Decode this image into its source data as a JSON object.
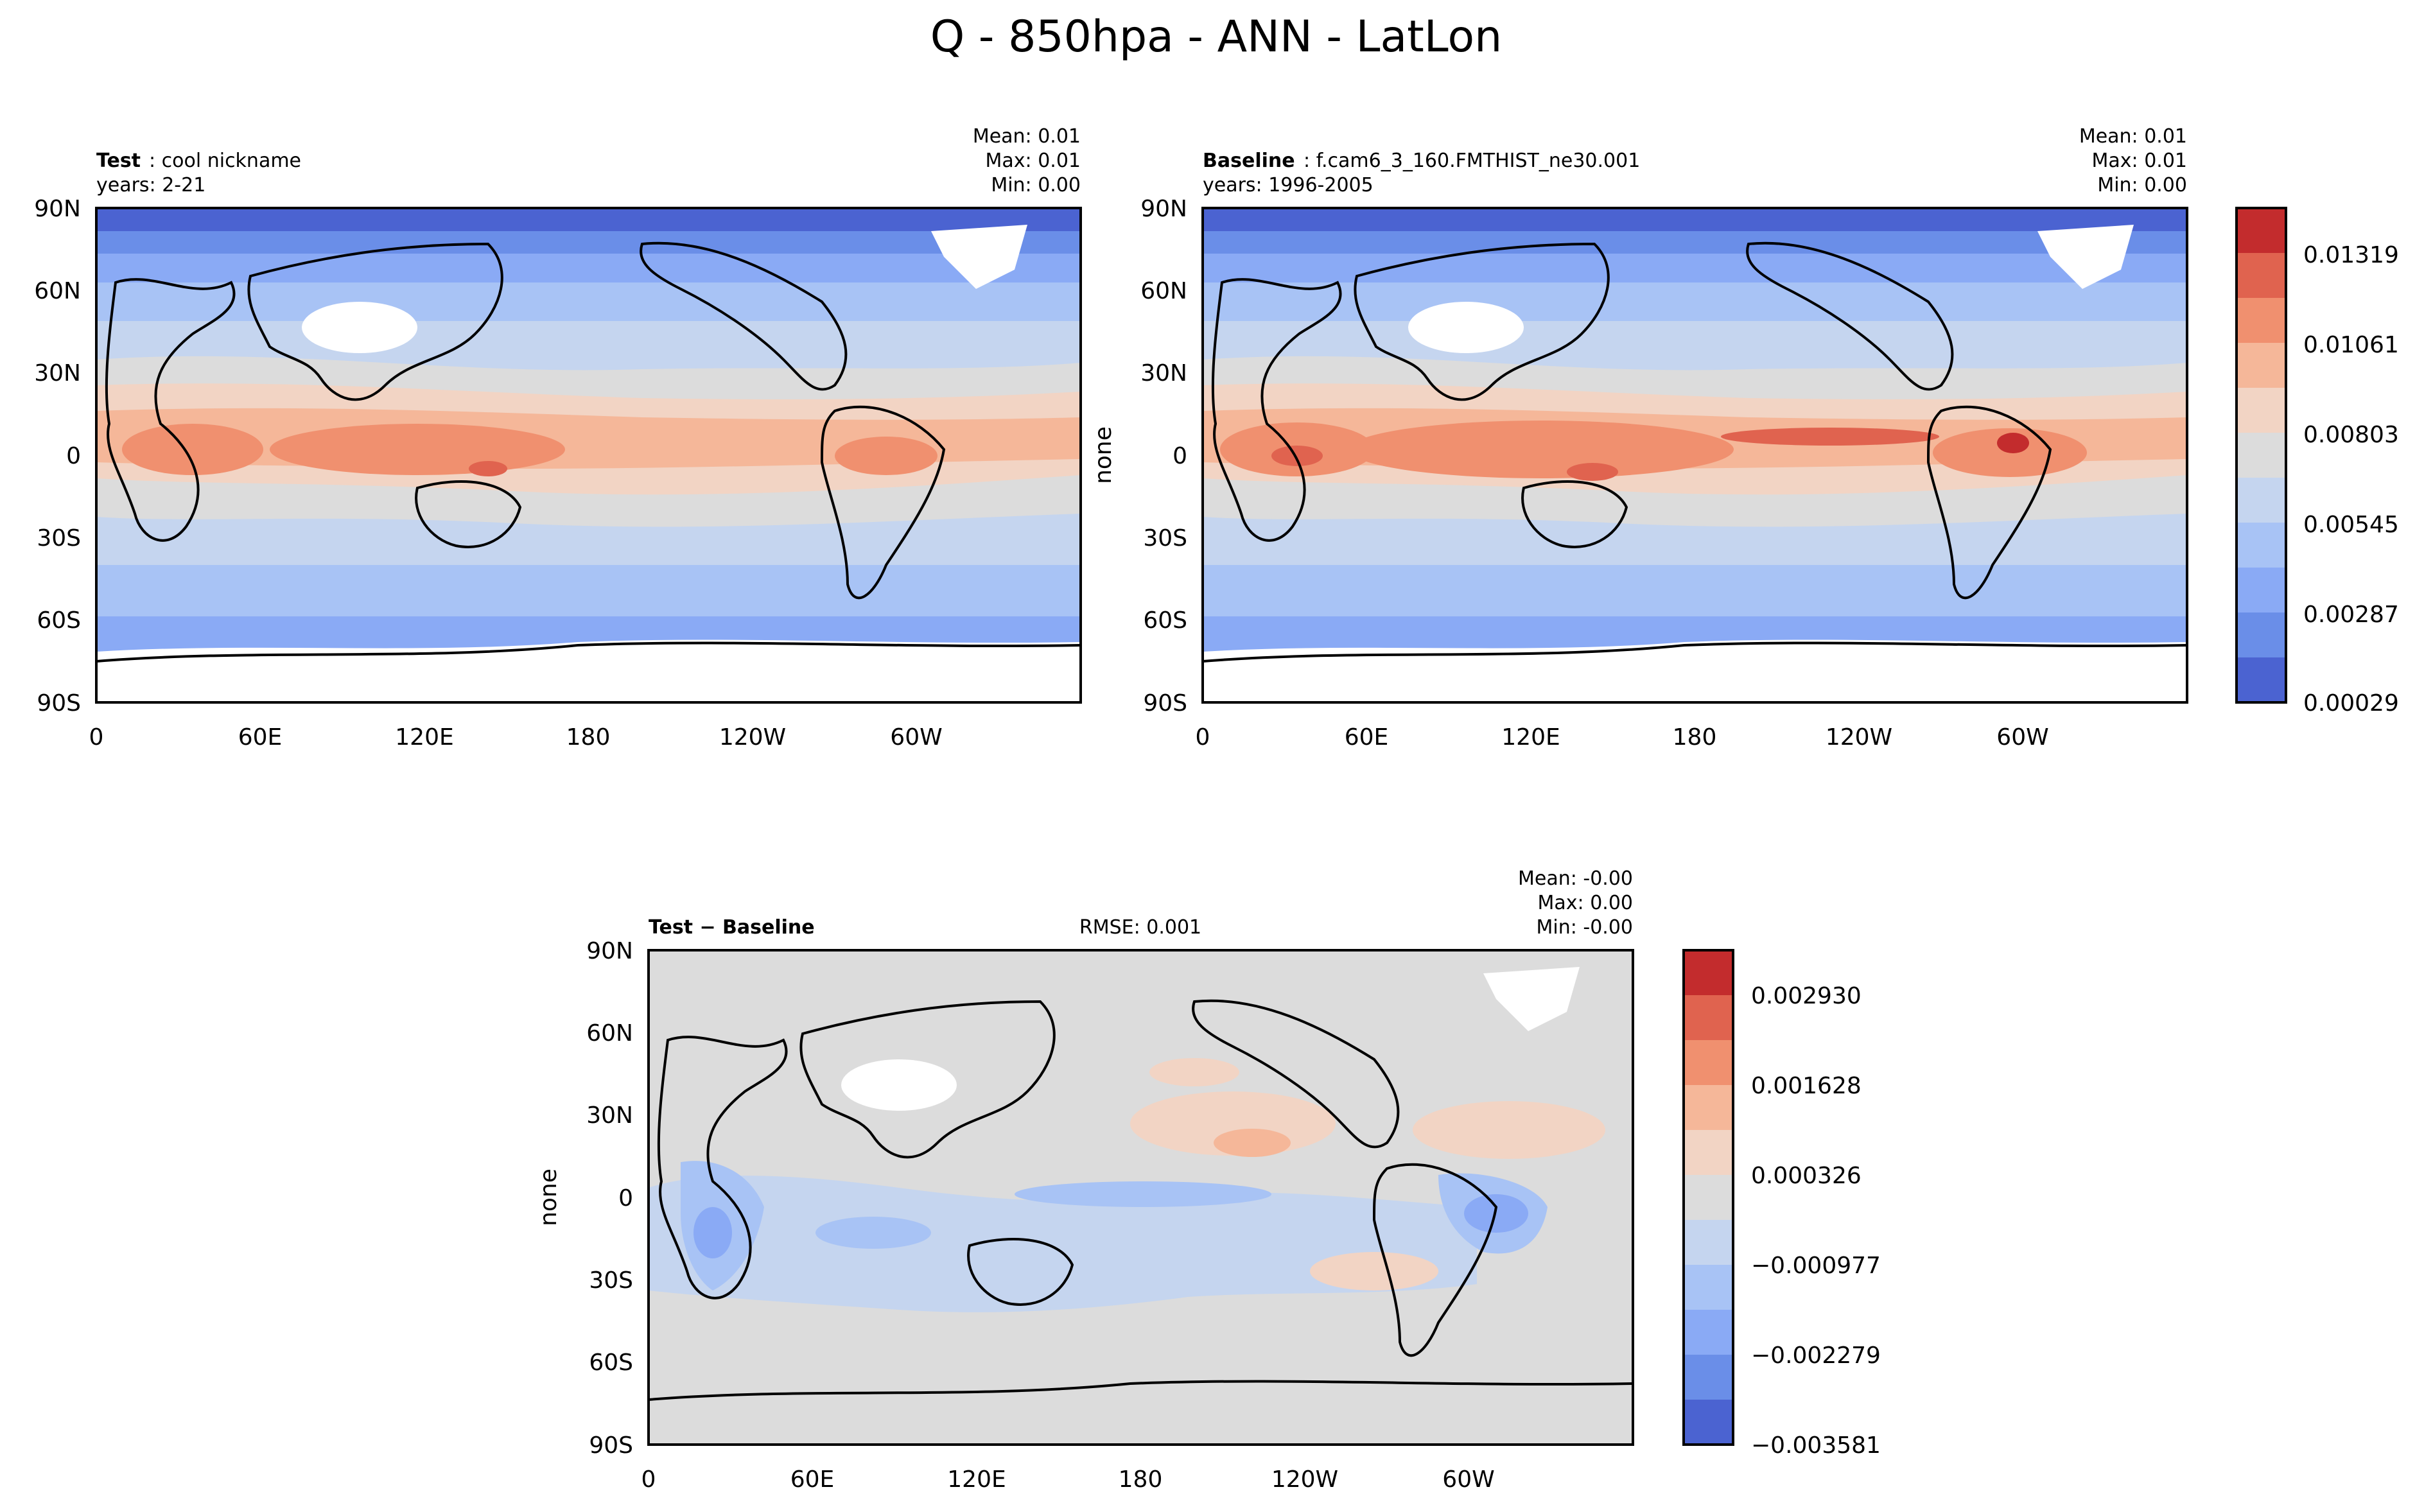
{
  "figure": {
    "title": "Q - 850hpa - ANN - LatLon"
  },
  "chart_data": [
    {
      "type": "heatmap",
      "panel": "test",
      "label_bold": "Test",
      "label_rest": ": cool nickname",
      "subtitle": "years: 2-21",
      "stats": {
        "mean": "Mean:  0.01",
        "max": "Max:  0.01",
        "min": "Min:  0.00"
      },
      "ylabel": "",
      "x_ticks": [
        "0",
        "60E",
        "120E",
        "180",
        "120W",
        "60W"
      ],
      "y_ticks": [
        "90N",
        "60N",
        "30N",
        "0",
        "30S",
        "60S",
        "90S"
      ]
    },
    {
      "type": "heatmap",
      "panel": "baseline",
      "label_bold": "Baseline",
      "label_rest": ": f.cam6_3_160.FMTHIST_ne30.001",
      "subtitle": "years: 1996-2005",
      "stats": {
        "mean": "Mean:  0.01",
        "max": "Max:  0.01",
        "min": "Min:  0.00"
      },
      "ylabel": "none",
      "x_ticks": [
        "0",
        "60E",
        "120E",
        "180",
        "120W",
        "60W"
      ],
      "y_ticks": [
        "90N",
        "60N",
        "30N",
        "0",
        "30S",
        "60S",
        "90S"
      ]
    },
    {
      "type": "heatmap",
      "panel": "difference",
      "label_bold": "Test − Baseline",
      "rmse": "RMSE: 0.001",
      "stats": {
        "mean": "Mean: -0.00",
        "max": "Max:  0.00",
        "min": "Min: -0.00"
      },
      "ylabel": "none",
      "x_ticks": [
        "0",
        "60E",
        "120E",
        "180",
        "120W",
        "60W"
      ],
      "y_ticks": [
        "90N",
        "60N",
        "30N",
        "0",
        "30S",
        "60S",
        "90S"
      ]
    }
  ],
  "colorbars": [
    {
      "panel": "test-baseline",
      "tick_labels": [
        "0.01319",
        "0.01061",
        "0.00803",
        "0.00545",
        "0.00287",
        "0.00029"
      ],
      "colors": [
        "#c32c2d",
        "#e0634f",
        "#f0906f",
        "#f5b799",
        "#f2d4c4",
        "#dcdcdc",
        "#c5d5ef",
        "#a8c3f5",
        "#8aaaf5",
        "#6a8ee8",
        "#4b63d1"
      ]
    },
    {
      "panel": "difference",
      "tick_labels": [
        "0.002930",
        "0.001628",
        "0.000326",
        "−0.000977",
        "−0.002279",
        "−0.003581"
      ],
      "colors": [
        "#c32c2d",
        "#e0634f",
        "#f0906f",
        "#f5b799",
        "#f2d4c4",
        "#dcdcdc",
        "#c5d5ef",
        "#a8c3f5",
        "#8aaaf5",
        "#6a8ee8",
        "#4b63d1"
      ]
    }
  ]
}
